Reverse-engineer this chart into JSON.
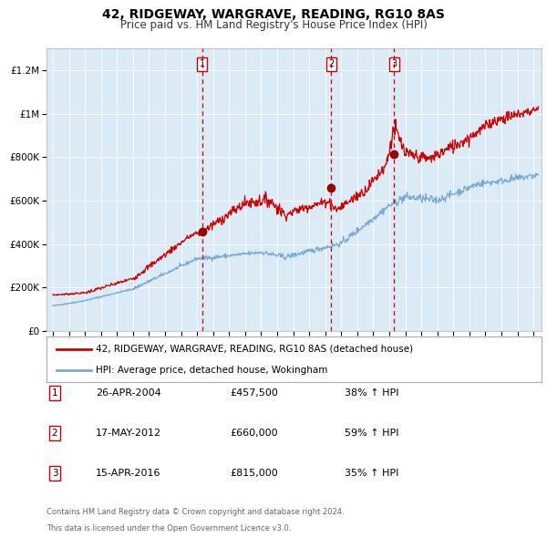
{
  "title": "42, RIDGEWAY, WARGRAVE, READING, RG10 8AS",
  "subtitle": "Price paid vs. HM Land Registry's House Price Index (HPI)",
  "title_fontsize": 10,
  "subtitle_fontsize": 8.5,
  "background_color": "#daeaf7",
  "plot_bg_color": "#daeaf7",
  "red_line_color": "#cc0000",
  "blue_line_color": "#7aa8d2",
  "sale_marker_color": "#990000",
  "dashed_line_color": "#cc0000",
  "ylim": [
    0,
    1300000
  ],
  "yticks": [
    0,
    200000,
    400000,
    600000,
    800000,
    1000000,
    1200000
  ],
  "ytick_labels": [
    "£0",
    "£200K",
    "£400K",
    "£600K",
    "£800K",
    "£1M",
    "£1.2M"
  ],
  "xtick_start": 1995,
  "xtick_end": 2025,
  "legend_label_red": "42, RIDGEWAY, WARGRAVE, READING, RG10 8AS (detached house)",
  "legend_label_blue": "HPI: Average price, detached house, Wokingham",
  "sales": [
    {
      "num": 1,
      "date_num": 2004.32,
      "price": 457500,
      "label": "26-APR-2004",
      "price_label": "£457,500",
      "pct": "38%",
      "dir": "↑"
    },
    {
      "num": 2,
      "date_num": 2012.38,
      "price": 660000,
      "label": "17-MAY-2012",
      "price_label": "£660,000",
      "pct": "59%",
      "dir": "↑"
    },
    {
      "num": 3,
      "date_num": 2016.29,
      "price": 815000,
      "label": "15-APR-2016",
      "price_label": "£815,000",
      "pct": "35%",
      "dir": "↑"
    }
  ],
  "footer1": "Contains HM Land Registry data © Crown copyright and database right 2024.",
  "footer2": "This data is licensed under the Open Government Licence v3.0."
}
